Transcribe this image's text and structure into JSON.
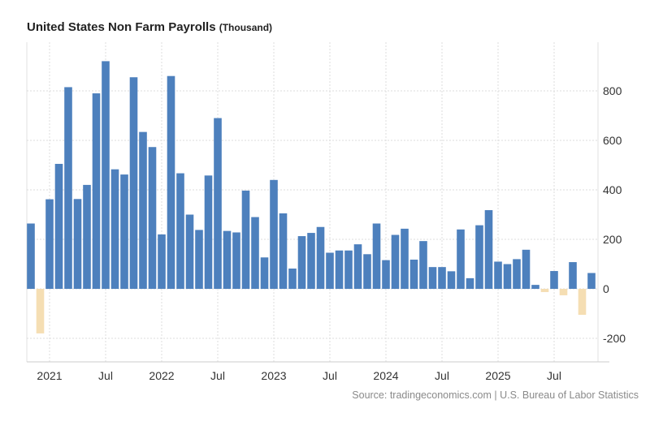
{
  "chart_data": {
    "type": "bar",
    "title": "United States Non Farm Payrolls",
    "unit": "(Thousand)",
    "source": "Source: tradingeconomics.com | U.S. Bureau of Labor Statistics",
    "ylim": [
      -300,
      980
    ],
    "yticks": [
      -200,
      0,
      200,
      400,
      600,
      800
    ],
    "xticks": [
      {
        "label": "2021",
        "month": "2021-01"
      },
      {
        "label": "Jul",
        "month": "2021-07"
      },
      {
        "label": "2022",
        "month": "2022-01"
      },
      {
        "label": "Jul",
        "month": "2022-07"
      },
      {
        "label": "2023",
        "month": "2023-01"
      },
      {
        "label": "Jul",
        "month": "2023-07"
      },
      {
        "label": "2024",
        "month": "2024-01"
      },
      {
        "label": "Jul",
        "month": "2024-07"
      },
      {
        "label": "2025",
        "month": "2025-01"
      },
      {
        "label": "Jul",
        "month": "2025-07"
      }
    ],
    "grid": true,
    "colors": {
      "positive": "#4d80bd",
      "negative": "#f5deb3"
    },
    "categories": [
      "2020-11",
      "2020-12",
      "2021-01",
      "2021-02",
      "2021-03",
      "2021-04",
      "2021-05",
      "2021-06",
      "2021-07",
      "2021-08",
      "2021-09",
      "2021-10",
      "2021-11",
      "2021-12",
      "2022-01",
      "2022-02",
      "2022-03",
      "2022-04",
      "2022-05",
      "2022-06",
      "2022-07",
      "2022-08",
      "2022-09",
      "2022-10",
      "2022-11",
      "2022-12",
      "2023-01",
      "2023-02",
      "2023-03",
      "2023-04",
      "2023-05",
      "2023-06",
      "2023-07",
      "2023-08",
      "2023-09",
      "2023-10",
      "2023-11",
      "2023-12",
      "2024-01",
      "2024-02",
      "2024-03",
      "2024-04",
      "2024-05",
      "2024-06",
      "2024-07",
      "2024-08",
      "2024-09",
      "2024-10",
      "2024-11",
      "2024-12",
      "2025-01",
      "2025-02",
      "2025-03",
      "2025-04",
      "2025-05",
      "2025-06",
      "2025-07",
      "2025-08",
      "2025-09",
      "2025-10",
      "2025-11"
    ],
    "values": [
      264,
      -180,
      362,
      505,
      815,
      363,
      420,
      790,
      920,
      483,
      462,
      855,
      634,
      573,
      220,
      860,
      467,
      300,
      238,
      458,
      690,
      234,
      228,
      397,
      290,
      127,
      440,
      305,
      82,
      213,
      226,
      250,
      146,
      155,
      155,
      180,
      140,
      264,
      116,
      218,
      243,
      118,
      193,
      88,
      88,
      71,
      240,
      43,
      257,
      318,
      110,
      100,
      120,
      158,
      16,
      -13,
      72,
      -26,
      108,
      -105,
      64
    ]
  }
}
